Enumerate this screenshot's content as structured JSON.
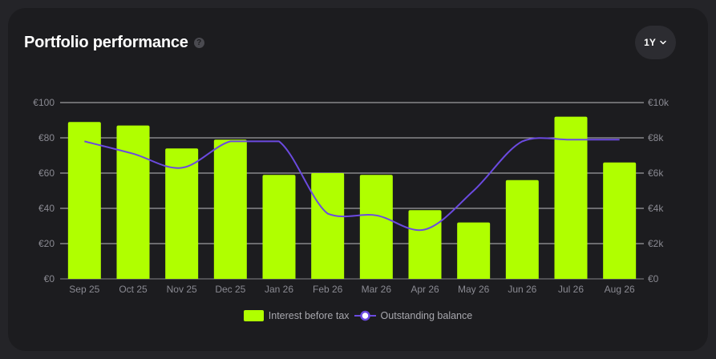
{
  "header": {
    "title": "Portfolio performance",
    "help_glyph": "?",
    "period_label": "1Y"
  },
  "colors": {
    "bar": "#b0ff00",
    "line": "#6b4ae0",
    "grid": "#d8d8dc",
    "card": "#1c1c1f",
    "axis_text": "#8a8a92"
  },
  "legend": {
    "bars_label": "Interest before tax",
    "line_label": "Outstanding balance"
  },
  "chart_data": {
    "type": "bar",
    "categories": [
      "Sep 25",
      "Oct 25",
      "Nov 25",
      "Dec 25",
      "Jan 26",
      "Feb 26",
      "Mar 26",
      "Apr 26",
      "May 26",
      "Jun 26",
      "Jul 26",
      "Aug 26"
    ],
    "series": [
      {
        "name": "Interest before tax",
        "type": "bar",
        "axis": "left",
        "values": [
          89,
          87,
          74,
          79,
          59,
          60,
          59,
          39,
          32,
          56,
          92,
          66
        ]
      },
      {
        "name": "Outstanding balance",
        "type": "line",
        "axis": "right",
        "values": [
          7800,
          7100,
          6300,
          7800,
          7800,
          3700,
          3600,
          2800,
          5000,
          7800,
          7900,
          7900
        ]
      }
    ],
    "y_left": {
      "ticks": [
        "€0",
        "€20",
        "€40",
        "€60",
        "€80",
        "€100"
      ],
      "tick_values": [
        0,
        20,
        40,
        60,
        80,
        100
      ],
      "range": [
        0,
        100
      ]
    },
    "y_right": {
      "ticks": [
        "€0",
        "€2k",
        "€4k",
        "€6k",
        "€8k",
        "€10k"
      ],
      "tick_values": [
        0,
        2000,
        4000,
        6000,
        8000,
        10000
      ],
      "range": [
        0,
        10000
      ]
    },
    "grid": true,
    "legend_position": "bottom"
  }
}
